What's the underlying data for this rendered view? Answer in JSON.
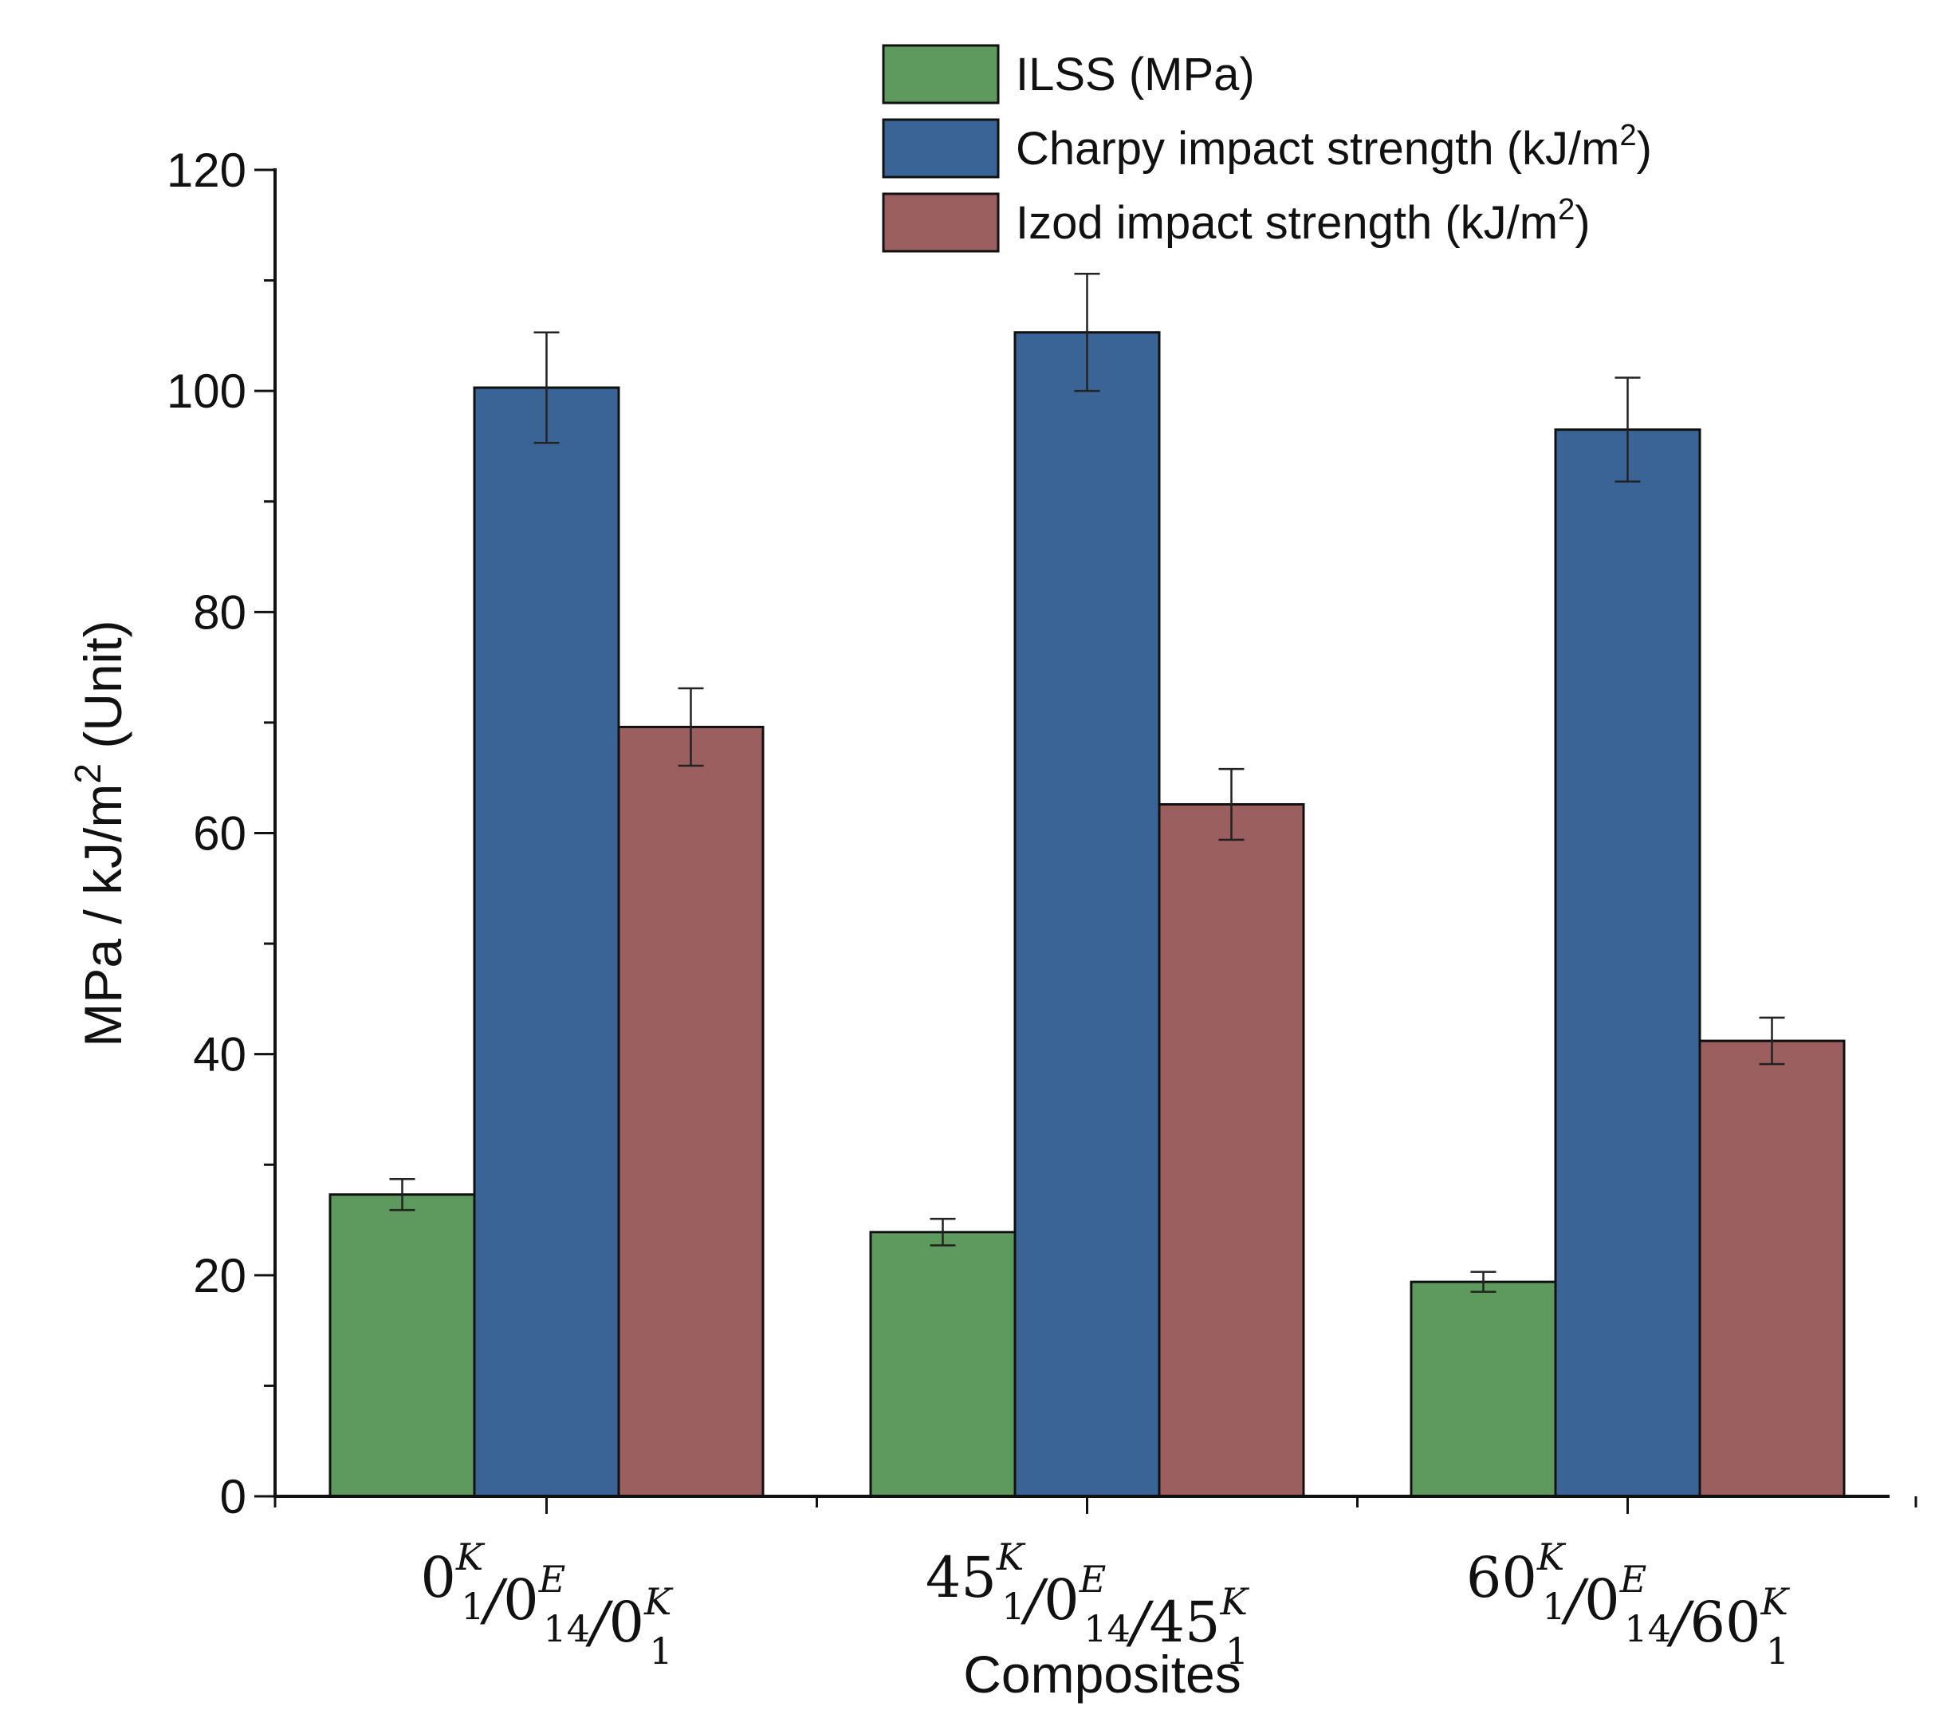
{
  "chart_data": {
    "type": "bar",
    "title": "",
    "xlabel": "Composites",
    "ylabel": {
      "prefix": "MPa / kJ/m",
      "sup": "2",
      "suffix": " (Unit)"
    },
    "ylim": [
      0,
      120
    ],
    "yticks": [
      0,
      20,
      40,
      60,
      80,
      100,
      120
    ],
    "grid": false,
    "legend_position": "top-right",
    "categories": [
      {
        "label": "0₁ᴷ/0₁₄ᴱ/0₁ᴷ",
        "parts": [
          {
            "base": "0",
            "sub": "1",
            "sup": "K"
          },
          {
            "sep": "/"
          },
          {
            "base": "0",
            "sub": "14",
            "sup": "E"
          },
          {
            "sep": "/"
          },
          {
            "base": "0",
            "sub": "1",
            "sup": "K"
          }
        ]
      },
      {
        "label": "45₁ᴷ/0₁₄ᴱ/45₁ᴷ",
        "parts": [
          {
            "base": "45",
            "sub": "1",
            "sup": "K"
          },
          {
            "sep": "/"
          },
          {
            "base": "0",
            "sub": "14",
            "sup": "E"
          },
          {
            "sep": "/"
          },
          {
            "base": "45",
            "sub": "1",
            "sup": "K"
          }
        ]
      },
      {
        "label": "60₁ᴷ/0₁₄ᴱ/60₁ᴷ",
        "parts": [
          {
            "base": "60",
            "sub": "1",
            "sup": "K"
          },
          {
            "sep": "/"
          },
          {
            "base": "0",
            "sub": "14",
            "sup": "E"
          },
          {
            "sep": "/"
          },
          {
            "base": "60",
            "sub": "1",
            "sup": "K"
          }
        ]
      }
    ],
    "series": [
      {
        "name": "ILSS (MPa)",
        "name_sup": "",
        "name_tail": "",
        "color": "#5e9a5e",
        "values": [
          27.3,
          23.9,
          19.4
        ],
        "errors": [
          1.4,
          1.2,
          0.9
        ]
      },
      {
        "name": "Charpy impact strength (kJ/m",
        "name_sup": "2",
        "name_tail": ")",
        "color": "#3a6496",
        "values": [
          100.3,
          105.3,
          96.5
        ],
        "errors": [
          5.0,
          5.3,
          4.7
        ]
      },
      {
        "name": "Izod impact strength (kJ/m",
        "name_sup": "2",
        "name_tail": ")",
        "color": "#9a5f5e",
        "values": [
          69.6,
          62.6,
          41.2
        ],
        "errors": [
          3.5,
          3.2,
          2.1
        ]
      }
    ]
  }
}
